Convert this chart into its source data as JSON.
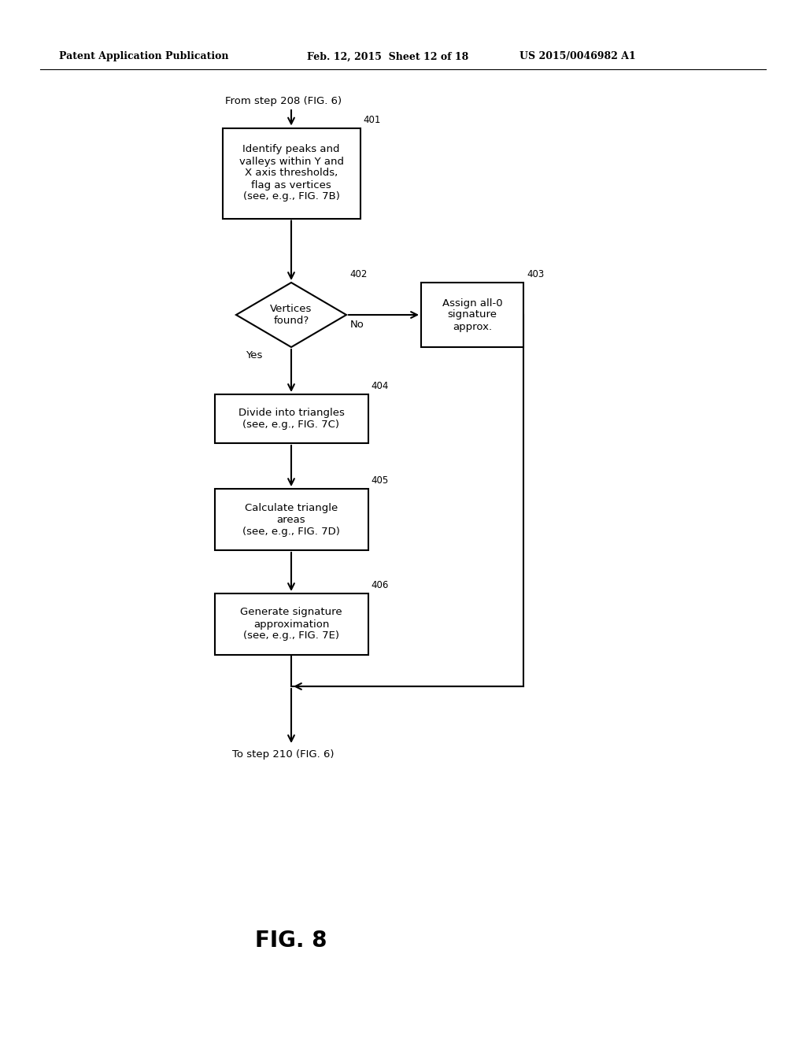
{
  "background_color": "#ffffff",
  "header_left": "Patent Application Publication",
  "header_mid": "Feb. 12, 2015  Sheet 12 of 18",
  "header_right": "US 2015/0046982 A1",
  "from_text": "From step 208 (FIG. 6)",
  "to_text": "To step 210 (FIG. 6)",
  "fig_label": "FIG. 8",
  "box401_text": "Identify peaks and\nvalleys within Y and\nX axis thresholds,\nflag as vertices\n(see, e.g., FIG. 7B)",
  "box401_label": "401",
  "box402_text": "Vertices\nfound?",
  "box402_label": "402",
  "box403_text": "Assign all-0\nsignature\napprox.",
  "box403_label": "403",
  "box404_text": "Divide into triangles\n(see, e.g., FIG. 7C)",
  "box404_label": "404",
  "box405_text": "Calculate triangle\nareas\n(see, e.g., FIG. 7D)",
  "box405_label": "405",
  "box406_text": "Generate signature\napproximation\n(see, e.g., FIG. 7E)",
  "box406_label": "406",
  "no_label": "No",
  "yes_label": "Yes",
  "text_color": "#000000",
  "box_edge_color": "#000000",
  "box_face_color": "#ffffff",
  "line_color": "#000000"
}
